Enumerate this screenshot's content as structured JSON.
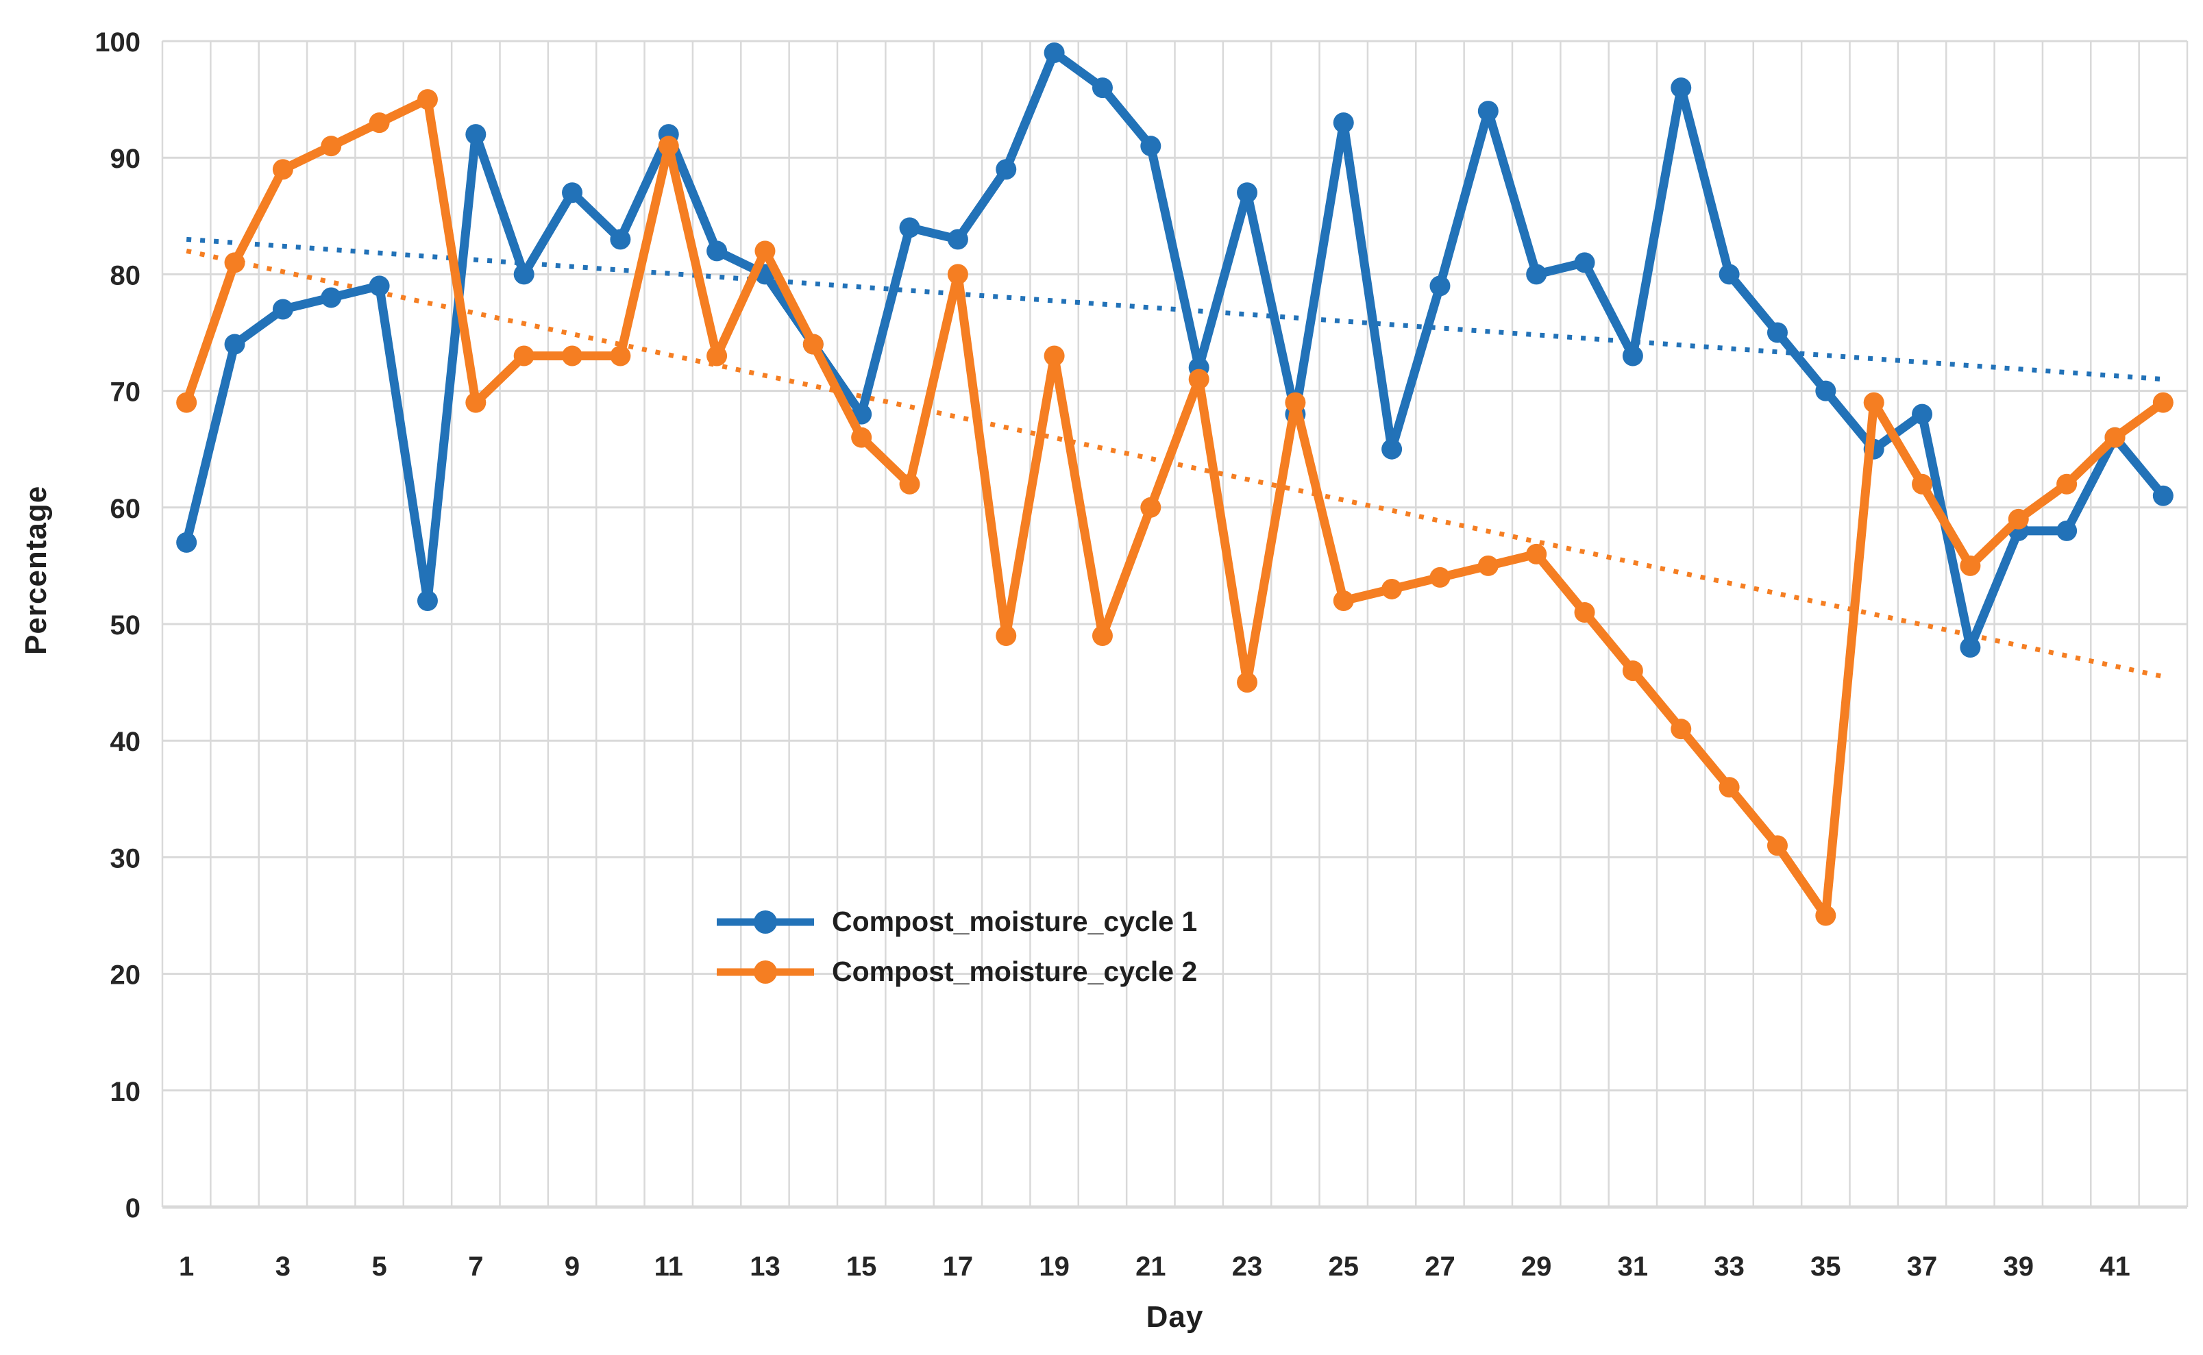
{
  "chart_data": {
    "type": "line",
    "title": "",
    "xlabel": "Day",
    "ylabel": "Percentage",
    "x": [
      1,
      2,
      3,
      4,
      5,
      6,
      7,
      8,
      9,
      10,
      11,
      12,
      13,
      14,
      15,
      16,
      17,
      18,
      19,
      20,
      21,
      22,
      23,
      24,
      25,
      26,
      27,
      28,
      29,
      30,
      31,
      32,
      33,
      34,
      35,
      36,
      37,
      38,
      39,
      40,
      41,
      42
    ],
    "x_tick_labels": [
      "1",
      "3",
      "5",
      "7",
      "9",
      "11",
      "13",
      "15",
      "17",
      "19",
      "21",
      "23",
      "25",
      "27",
      "29",
      "31",
      "33",
      "35",
      "37",
      "39",
      "41"
    ],
    "y_ticks": [
      0,
      10,
      20,
      30,
      40,
      50,
      60,
      70,
      80,
      90,
      100
    ],
    "ylim": [
      0,
      100
    ],
    "grid": true,
    "legend_position": "inside-left-lower-middle",
    "series": [
      {
        "name": "Compost_moisture_cycle 1",
        "color": "#2272B8",
        "marker": "circle",
        "values": [
          57,
          74,
          77,
          78,
          79,
          52,
          92,
          80,
          87,
          83,
          92,
          82,
          80,
          74,
          68,
          84,
          83,
          89,
          99,
          96,
          91,
          72,
          87,
          68,
          93,
          65,
          79,
          94,
          80,
          81,
          73,
          96,
          80,
          75,
          70,
          65,
          68,
          48,
          58,
          58,
          66,
          61
        ],
        "trend": {
          "type": "linear",
          "style": "dotted",
          "start": 83,
          "end": 71
        }
      },
      {
        "name": "Compost_moisture_cycle 2",
        "color": "#F57E22",
        "marker": "circle",
        "values": [
          69,
          81,
          89,
          91,
          93,
          95,
          69,
          73,
          73,
          73,
          91,
          73,
          82,
          74,
          66,
          62,
          80,
          49,
          73,
          49,
          60,
          71,
          45,
          69,
          52,
          53,
          54,
          55,
          56,
          51,
          46,
          41,
          36,
          31,
          25,
          69,
          62,
          55,
          59,
          62,
          66,
          69
        ],
        "trend": {
          "type": "linear",
          "style": "dotted",
          "start": 82,
          "end": 45.5
        }
      }
    ],
    "colors": {
      "gridline": "#D9D9D9",
      "axis_line": "#C6C6C6",
      "tick_text": "#262626"
    }
  }
}
